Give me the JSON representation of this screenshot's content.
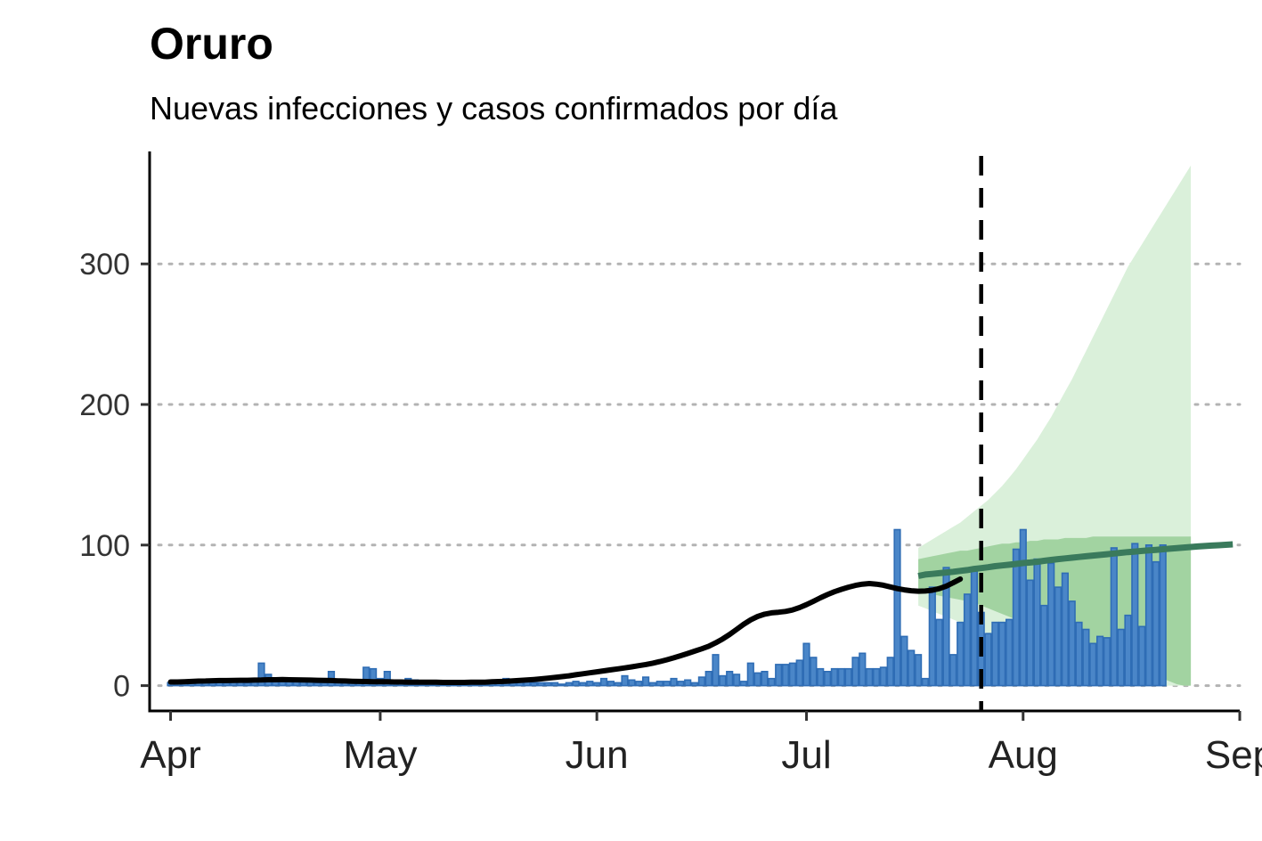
{
  "chart_data": {
    "type": "bar",
    "title": "Oruro",
    "subtitle": "Nuevas infecciones y casos confirmados por día",
    "xlabel": "",
    "ylabel": "",
    "x_range": [
      "2020-03-29",
      "2020-09-01"
    ],
    "ylim": [
      -18,
      380
    ],
    "yticks": [
      0,
      100,
      200,
      300
    ],
    "xticks": [
      {
        "date": "2020-04-01",
        "label": "Apr"
      },
      {
        "date": "2020-05-01",
        "label": "May"
      },
      {
        "date": "2020-06-01",
        "label": "Jun"
      },
      {
        "date": "2020-07-01",
        "label": "Jul"
      },
      {
        "date": "2020-08-01",
        "label": "Aug"
      },
      {
        "date": "2020-09-01",
        "label": "Sep"
      }
    ],
    "grid": "horizontal dotted",
    "vline_date": "2020-07-26",
    "colors": {
      "bars_fill": "#4a86c8",
      "bars_stroke": "#2f6db5",
      "estimate_line": "#000000",
      "forecast_line": "#3a7a5c",
      "band_outer": "#daf0da",
      "band_inner": "#a2d3a1",
      "vline": "#000000",
      "grid": "#b3b3b3"
    },
    "series": [
      {
        "type": "bar",
        "start": "2020-04-01",
        "values": [
          2,
          3,
          3,
          2,
          3,
          3,
          2,
          3,
          2,
          3,
          3,
          2,
          3,
          16,
          8,
          4,
          4,
          3,
          3,
          3,
          3,
          2,
          2,
          10,
          4,
          3,
          2,
          2,
          13,
          12,
          5,
          10,
          4,
          3,
          5,
          4,
          2,
          2,
          2,
          1,
          2,
          2,
          2,
          2,
          1,
          2,
          2,
          2,
          5,
          2,
          3,
          3,
          2,
          2,
          2,
          2,
          1,
          2,
          3,
          2,
          3,
          2,
          5,
          3,
          2,
          7,
          4,
          3,
          6,
          2,
          3,
          3,
          5,
          3,
          4,
          2,
          6,
          10,
          22,
          7,
          10,
          8,
          3,
          16,
          9,
          10,
          5,
          15,
          15,
          16,
          18,
          30,
          20,
          12,
          10,
          12,
          12,
          12,
          20,
          23,
          12,
          12,
          13,
          20,
          111,
          35,
          25,
          22,
          5,
          70,
          47,
          84,
          22,
          45,
          65,
          82,
          52,
          37,
          45,
          45,
          47,
          97,
          111,
          75,
          90,
          57,
          87,
          70,
          80,
          60,
          45,
          40,
          30,
          35,
          34,
          98,
          40,
          50,
          101,
          42,
          100,
          88,
          100
        ]
      },
      {
        "type": "line",
        "start": "2020-04-01",
        "values": [
          2.6,
          2.6,
          2.8,
          3.0,
          3.2,
          3.3,
          3.5,
          3.6,
          3.6,
          3.7,
          3.8,
          3.8,
          3.9,
          4.0,
          4.2,
          4.2,
          4.3,
          4.2,
          4.1,
          4.0,
          3.9,
          3.8,
          3.7,
          3.6,
          3.4,
          3.3,
          3.1,
          3.0,
          2.9,
          2.8,
          2.7,
          2.7,
          2.6,
          2.6,
          2.5,
          2.5,
          2.4,
          2.4,
          2.4,
          2.3,
          2.3,
          2.3,
          2.3,
          2.4,
          2.4,
          2.5,
          2.7,
          2.9,
          3.1,
          3.4,
          3.7,
          4.0,
          4.4,
          4.8,
          5.3,
          5.8,
          6.4,
          7.0,
          7.7,
          8.4,
          9.1,
          9.8,
          10.5,
          11.2,
          11.9,
          12.6,
          13.4,
          14.2,
          15.0,
          16.0,
          17.1,
          18.4,
          19.8,
          21.3,
          22.9,
          24.5,
          26.2,
          28.0,
          30.4,
          33.2,
          36.4,
          40.0,
          43.6,
          46.8,
          49.2,
          50.8,
          51.8,
          52.2,
          52.8,
          53.8,
          55.5,
          57.6,
          60.0,
          62.5,
          64.8,
          66.8,
          68.5,
          70.0,
          71.3,
          72.2,
          72.6,
          72.2,
          71.4,
          70.2,
          69.0,
          68.1,
          67.5,
          67.2,
          67.3,
          67.9,
          69.0,
          70.8,
          73.2,
          75.8
        ]
      },
      {
        "type": "line",
        "start": "2020-07-17",
        "values": [
          78,
          79,
          79.5,
          80,
          80.5,
          81,
          81.6,
          82.2,
          83,
          83.6,
          84.2,
          85,
          85.5,
          86,
          86.6,
          87.2,
          87.6,
          88.1,
          88.8,
          89.4,
          90,
          90.5,
          91,
          91.5,
          92,
          92.5,
          93,
          93.5,
          94,
          94.5,
          95,
          95.4,
          95.8,
          96.2,
          96.6,
          97,
          97.4,
          97.8,
          98.2,
          98.6,
          99,
          99.3,
          99.6,
          99.9,
          100.2,
          100.5
        ]
      }
    ],
    "bands": [
      {
        "start": "2020-07-17",
        "upper": [
          98,
          101,
          104,
          107,
          110,
          113,
          116,
          120,
          124,
          128,
          132,
          137,
          142,
          148,
          154,
          161,
          168,
          175,
          183,
          191,
          200,
          209,
          218,
          228,
          238,
          248,
          258,
          268,
          278,
          288,
          298,
          306,
          314,
          322,
          330,
          338,
          346,
          354,
          362,
          370
        ],
        "lower": [
          57,
          55,
          53,
          51,
          49,
          47,
          45,
          43,
          41,
          39,
          37,
          35,
          33,
          31,
          29,
          27,
          25,
          23,
          21,
          19,
          17,
          15,
          13,
          11,
          9,
          7,
          5,
          3,
          1,
          0,
          0,
          0,
          0,
          0,
          0,
          0,
          0,
          0,
          0,
          0
        ]
      },
      {
        "start": "2020-07-17",
        "upper": [
          90,
          91,
          92,
          93,
          94,
          95,
          96,
          96,
          97,
          98,
          99,
          100,
          101,
          101,
          102,
          102,
          103,
          103,
          104,
          104,
          104,
          105,
          105,
          105,
          105,
          106,
          106,
          106,
          106,
          106,
          106,
          106,
          106,
          106,
          106,
          106,
          106,
          106,
          106,
          106
        ],
        "lower": [
          67,
          66,
          65,
          64,
          63,
          62,
          61,
          60,
          59,
          57,
          55,
          53,
          51,
          49,
          47,
          45,
          43,
          41,
          39,
          37,
          35,
          33,
          31,
          29,
          27,
          25,
          23,
          21,
          19,
          17,
          15,
          13,
          11,
          9,
          7,
          5,
          3,
          1,
          0,
          0
        ]
      }
    ]
  }
}
